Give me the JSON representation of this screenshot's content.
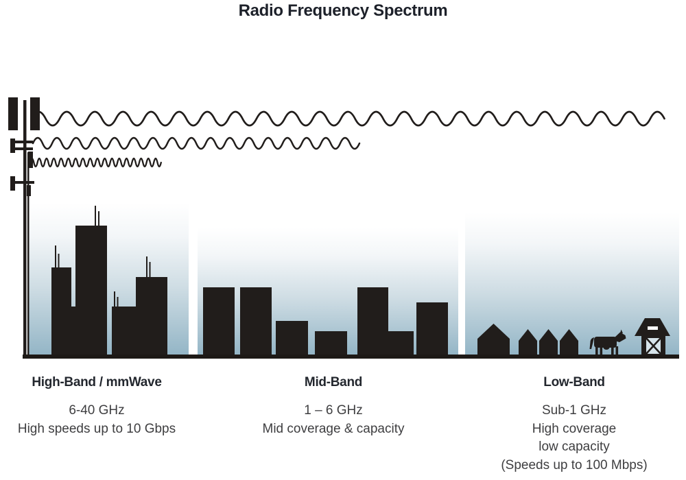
{
  "title": "Radio Frequency Spectrum",
  "colors": {
    "ink": "#211d1b",
    "sky_top": "#ffffff",
    "sky_bottom": "#93b5c6",
    "heading": "#23272e",
    "text": "#3e3e40"
  },
  "tower": {
    "icon": "cell-tower-icon"
  },
  "waves": [
    {
      "name": "long-wavelength-wave",
      "band": "Low-Band"
    },
    {
      "name": "medium-wavelength-wave",
      "band": "Mid-Band"
    },
    {
      "name": "short-wavelength-wave",
      "band": "High-Band"
    }
  ],
  "bands": [
    {
      "name": "High-Band / mmWave",
      "range": "6-40 GHz",
      "line1": "High speeds up to 10 Gbps",
      "scene": "city-skyscrapers"
    },
    {
      "name": "Mid-Band",
      "range": "1 – 6 GHz",
      "line1": "Mid coverage & capacity",
      "scene": "mid-rise-buildings"
    },
    {
      "name": "Low-Band",
      "range": "Sub-1 GHz",
      "line1": "High coverage",
      "line2": "low capacity",
      "line3": "(Speeds up to 100 Mbps)",
      "scene": "rural-houses-cow-barn"
    }
  ]
}
